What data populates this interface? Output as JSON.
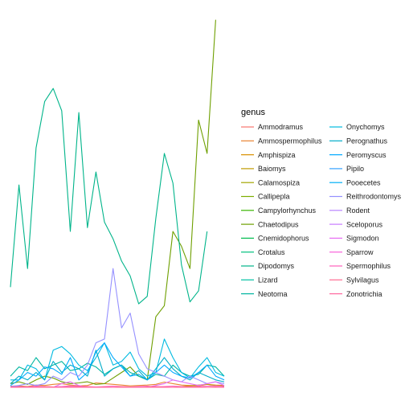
{
  "chart_data": {
    "type": "line",
    "title": "",
    "xlabel": "",
    "ylabel": "",
    "grid": false,
    "axes_visible": false,
    "legend_title": "genus",
    "legend_placement": "right",
    "x": [
      1977,
      1978,
      1979,
      1980,
      1981,
      1982,
      1983,
      1984,
      1985,
      1986,
      1987,
      1988,
      1989,
      1990,
      1991,
      1992,
      1993,
      1994,
      1995,
      1996,
      1997,
      1998,
      1999,
      2000,
      2001,
      2002
    ],
    "ylim": [
      0,
      1000
    ],
    "series": [
      {
        "name": "Ammodramus",
        "color": "#F8766D",
        "values": [
          0,
          0,
          2,
          0,
          0,
          1,
          0,
          0,
          1,
          0,
          0,
          0,
          0,
          0,
          0,
          0,
          0,
          0,
          0,
          0,
          0,
          0,
          0,
          0,
          0,
          0
        ]
      },
      {
        "name": "Ammospermophilus",
        "color": "#EA8331",
        "values": [
          3,
          4,
          2,
          6,
          5,
          8,
          10,
          6,
          4,
          5,
          12,
          10,
          8,
          6,
          4,
          5,
          6,
          8,
          14,
          10,
          6,
          5,
          4,
          8,
          6,
          5
        ]
      },
      {
        "name": "Amphispiza",
        "color": "#D89000",
        "values": [
          0,
          0,
          0,
          0,
          1,
          0,
          0,
          0,
          0,
          0,
          0,
          0,
          0,
          0,
          0,
          0,
          0,
          0,
          0,
          0,
          0,
          0,
          0,
          0,
          0,
          0
        ]
      },
      {
        "name": "Baiomys",
        "color": "#C09B00",
        "values": [
          0,
          0,
          0,
          0,
          0,
          0,
          0,
          0,
          0,
          0,
          0,
          0,
          0,
          0,
          0,
          0,
          0,
          0,
          0,
          0,
          2,
          4,
          6,
          8,
          5,
          3
        ]
      },
      {
        "name": "Calamospiza",
        "color": "#A3A500",
        "values": [
          0,
          0,
          0,
          0,
          0,
          0,
          0,
          0,
          0,
          0,
          0,
          0,
          0,
          0,
          0,
          0,
          0,
          0,
          0,
          0,
          0,
          0,
          0,
          0,
          0,
          0
        ]
      },
      {
        "name": "Callipepla",
        "color": "#7CAE00",
        "values": [
          0,
          0,
          0,
          0,
          0,
          0,
          0,
          0,
          0,
          0,
          0,
          0,
          0,
          0,
          0,
          0,
          0,
          0,
          0,
          0,
          0,
          0,
          0,
          0,
          0,
          0
        ]
      },
      {
        "name": "Campylorhynchus",
        "color": "#39B600",
        "values": [
          0,
          0,
          0,
          0,
          0,
          0,
          0,
          0,
          0,
          0,
          0,
          0,
          0,
          0,
          0,
          0,
          0,
          0,
          0,
          0,
          0,
          0,
          0,
          0,
          0,
          0
        ]
      },
      {
        "name": "Chaetodipus",
        "color": "#6E9F00",
        "values": [
          10,
          15,
          8,
          20,
          30,
          25,
          15,
          10,
          12,
          15,
          8,
          10,
          25,
          40,
          55,
          30,
          20,
          190,
          220,
          420,
          380,
          320,
          720,
          630,
          990,
          null
        ]
      },
      {
        "name": "Cnemidophorus",
        "color": "#00BB4E",
        "values": [
          0,
          0,
          0,
          0,
          0,
          0,
          0,
          0,
          0,
          0,
          0,
          0,
          0,
          0,
          0,
          0,
          0,
          0,
          0,
          0,
          0,
          0,
          0,
          0,
          0,
          0
        ]
      },
      {
        "name": "Crotalus",
        "color": "#00BF7D",
        "values": [
          0,
          0,
          0,
          0,
          0,
          0,
          0,
          0,
          0,
          0,
          0,
          0,
          0,
          0,
          0,
          0,
          0,
          0,
          0,
          0,
          0,
          0,
          0,
          0,
          0,
          0
        ]
      },
      {
        "name": "Dipodomys",
        "color": "#00B48A",
        "values": [
          270,
          545,
          320,
          645,
          770,
          805,
          745,
          420,
          740,
          430,
          580,
          445,
          400,
          340,
          300,
          225,
          245,
          455,
          630,
          550,
          330,
          230,
          260,
          420,
          null,
          null
        ]
      },
      {
        "name": "Lizard",
        "color": "#00C1A3",
        "values": [
          2,
          0,
          0,
          0,
          0,
          0,
          0,
          0,
          0,
          0,
          0,
          0,
          0,
          0,
          0,
          0,
          0,
          0,
          0,
          0,
          0,
          0,
          0,
          0,
          0,
          0
        ]
      },
      {
        "name": "Neotoma",
        "color": "#00B5A0",
        "values": [
          30,
          55,
          45,
          80,
          50,
          60,
          70,
          45,
          50,
          65,
          55,
          35,
          50,
          60,
          40,
          30,
          20,
          35,
          30,
          60,
          40,
          30,
          35,
          60,
          55,
          30
        ]
      },
      {
        "name": "Onychomys",
        "color": "#00BAE0",
        "values": [
          20,
          20,
          60,
          50,
          20,
          100,
          110,
          90,
          60,
          45,
          80,
          120,
          60,
          70,
          95,
          50,
          30,
          40,
          130,
          80,
          40,
          25,
          55,
          80,
          40,
          30
        ]
      },
      {
        "name": "Perognathus",
        "color": "#00ADC9",
        "values": [
          10,
          30,
          20,
          40,
          20,
          70,
          40,
          60,
          50,
          30,
          100,
          30,
          50,
          60,
          30,
          45,
          20,
          50,
          80,
          50,
          30,
          20,
          40,
          30,
          20,
          15
        ]
      },
      {
        "name": "Peromyscus",
        "color": "#00A9FF",
        "values": [
          5,
          20,
          40,
          30,
          55,
          50,
          35,
          80,
          20,
          40,
          95,
          120,
          80,
          55,
          30,
          35,
          20,
          40,
          60,
          40,
          30,
          25,
          40,
          60,
          30,
          20
        ]
      },
      {
        "name": "Pipilo",
        "color": "#35A2FF",
        "values": [
          0,
          0,
          0,
          0,
          0,
          0,
          0,
          0,
          0,
          0,
          0,
          0,
          0,
          0,
          0,
          0,
          0,
          0,
          0,
          0,
          0,
          0,
          0,
          0,
          0,
          0
        ]
      },
      {
        "name": "Pooecetes",
        "color": "#00B0F6",
        "values": [
          0,
          0,
          0,
          0,
          0,
          0,
          0,
          0,
          0,
          0,
          0,
          0,
          0,
          0,
          0,
          0,
          0,
          0,
          0,
          0,
          0,
          0,
          0,
          0,
          0,
          0
        ]
      },
      {
        "name": "Reithrodontomys",
        "color": "#9590FF",
        "values": [
          2,
          5,
          10,
          5,
          10,
          30,
          20,
          40,
          30,
          60,
          120,
          130,
          320,
          160,
          200,
          90,
          50,
          40,
          30,
          20,
          15,
          30,
          20,
          10,
          15,
          10
        ]
      },
      {
        "name": "Rodent",
        "color": "#B983FF",
        "values": [
          0,
          0,
          0,
          0,
          0,
          0,
          0,
          0,
          0,
          0,
          0,
          0,
          0,
          0,
          0,
          0,
          0,
          0,
          0,
          0,
          0,
          0,
          0,
          0,
          0,
          0
        ]
      },
      {
        "name": "Sceloporus",
        "color": "#C77CFF",
        "values": [
          0,
          1,
          0,
          0,
          0,
          0,
          2,
          0,
          0,
          0,
          0,
          1,
          0,
          0,
          0,
          0,
          0,
          0,
          0,
          0,
          0,
          0,
          0,
          0,
          0,
          0
        ]
      },
      {
        "name": "Sigmodon",
        "color": "#E76BF3",
        "values": [
          0,
          0,
          0,
          0,
          0,
          0,
          10,
          15,
          5,
          0,
          0,
          0,
          0,
          0,
          0,
          0,
          0,
          5,
          10,
          20,
          15,
          10,
          5,
          10,
          15,
          5
        ]
      },
      {
        "name": "Sparrow",
        "color": "#FA62DB",
        "values": [
          0,
          0,
          0,
          0,
          0,
          0,
          0,
          0,
          0,
          0,
          0,
          0,
          0,
          0,
          0,
          0,
          0,
          0,
          0,
          0,
          0,
          0,
          0,
          0,
          0,
          0
        ]
      },
      {
        "name": "Spermophilus",
        "color": "#FF62BC",
        "values": [
          1,
          2,
          1,
          3,
          2,
          1,
          2,
          4,
          3,
          2,
          1,
          2,
          3,
          2,
          1,
          2,
          3,
          1,
          2,
          3,
          2,
          1,
          2,
          3,
          4,
          2
        ]
      },
      {
        "name": "Sylvilagus",
        "color": "#FF6C91",
        "values": [
          0,
          1,
          0,
          1,
          2,
          1,
          0,
          1,
          2,
          1,
          0,
          1,
          0,
          2,
          1,
          0,
          1,
          2,
          1,
          0,
          1,
          2,
          1,
          0,
          1,
          0
        ]
      },
      {
        "name": "Zonotrichia",
        "color": "#FF689F",
        "values": [
          0,
          0,
          0,
          0,
          0,
          0,
          0,
          0,
          0,
          0,
          0,
          0,
          0,
          0,
          0,
          0,
          0,
          0,
          0,
          0,
          0,
          0,
          0,
          0,
          0,
          0
        ]
      }
    ]
  }
}
